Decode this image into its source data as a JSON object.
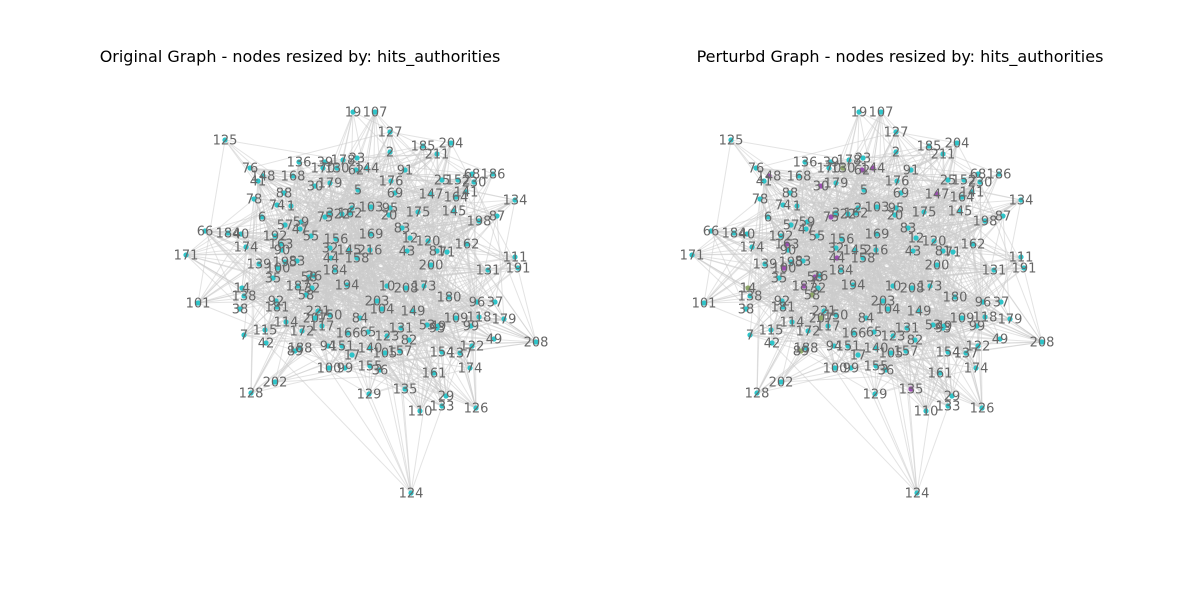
{
  "colors": {
    "edge": "#cccccc",
    "label": "#666666",
    "node_original": "#2ec4c9",
    "node_perturbed_default": "#2ec4c9",
    "node_perturbed_purple": "#9b4fb0",
    "node_perturbed_olive": "#8fa86a"
  },
  "panels": [
    {
      "title": "Original Graph - nodes resized by: hits_authorities",
      "nodes": [
        "19",
        "107",
        "125",
        "127",
        "185",
        "204",
        "2",
        "211",
        "76",
        "148",
        "168",
        "136",
        "39",
        "170",
        "178",
        "23",
        "130",
        "62",
        "144",
        "91",
        "68",
        "186",
        "41",
        "88",
        "30",
        "179",
        "5",
        "176",
        "25",
        "152",
        "230",
        "78",
        "74",
        "1",
        "69",
        "147",
        "164",
        "141",
        "134",
        "3",
        "162",
        "2",
        "103",
        "95",
        "145",
        "87",
        "6",
        "57",
        "59",
        "75",
        "22",
        "20",
        "175",
        "198",
        "66",
        "184",
        "40",
        "192",
        "47",
        "55",
        "156",
        "169",
        "83",
        "12",
        "120",
        "111",
        "171",
        "174",
        "163",
        "90",
        "32",
        "145",
        "216",
        "43",
        "81",
        "71",
        "162",
        "139",
        "195",
        "83",
        "184",
        "44",
        "158",
        "200",
        "131",
        "191",
        "35",
        "26",
        "14",
        "187",
        "194",
        "10",
        "208",
        "173",
        "180",
        "96",
        "37",
        "138",
        "32",
        "58",
        "203",
        "58",
        "101",
        "38",
        "92",
        "181",
        "221",
        "104",
        "149",
        "109",
        "118",
        "179",
        "114",
        "150",
        "84",
        "99",
        "7",
        "115",
        "172",
        "117",
        "207",
        "166",
        "65",
        "131",
        "123",
        "82",
        "93",
        "49",
        "42",
        "89",
        "188",
        "151",
        "140",
        "105",
        "157",
        "154",
        "137",
        "122",
        "208",
        "17",
        "94",
        "49",
        "174",
        "161",
        "202",
        "128",
        "100",
        "99",
        "155",
        "36",
        "129",
        "135",
        "29",
        "133",
        "126",
        "110",
        "124",
        "53",
        "100",
        "50"
      ]
    },
    {
      "title": "Perturbd Graph - nodes resized by: hits_authorities",
      "nodes": [
        "19",
        "107",
        "125",
        "127",
        "185",
        "204",
        "2",
        "211",
        "76",
        "148",
        "168",
        "136",
        "39",
        "170",
        "178",
        "23",
        "130",
        "62",
        "144",
        "91",
        "68",
        "186",
        "41",
        "88",
        "30",
        "179",
        "5",
        "176",
        "25",
        "152",
        "230",
        "78",
        "74",
        "1",
        "69",
        "147",
        "164",
        "141",
        "134",
        "3",
        "162",
        "2",
        "103",
        "95",
        "145",
        "87",
        "6",
        "57",
        "59",
        "75",
        "22",
        "20",
        "175",
        "198",
        "66",
        "184",
        "40",
        "192",
        "47",
        "55",
        "156",
        "169",
        "83",
        "12",
        "120",
        "111",
        "171",
        "174",
        "163",
        "90",
        "32",
        "145",
        "216",
        "43",
        "81",
        "71",
        "162",
        "139",
        "195",
        "83",
        "184",
        "44",
        "158",
        "200",
        "131",
        "191",
        "35",
        "26",
        "14",
        "187",
        "194",
        "10",
        "208",
        "173",
        "180",
        "96",
        "37",
        "138",
        "32",
        "58",
        "203",
        "58",
        "101",
        "38",
        "92",
        "181",
        "221",
        "104",
        "149",
        "109",
        "118",
        "179",
        "114",
        "150",
        "84",
        "99",
        "7",
        "115",
        "172",
        "117",
        "207",
        "166",
        "65",
        "131",
        "123",
        "82",
        "93",
        "49",
        "42",
        "89",
        "188",
        "151",
        "140",
        "105",
        "157",
        "154",
        "137",
        "122",
        "208",
        "17",
        "94",
        "49",
        "174",
        "161",
        "202",
        "128",
        "100",
        "99",
        "155",
        "36",
        "129",
        "135",
        "29",
        "133",
        "126",
        "110",
        "124",
        "53",
        "100",
        "50"
      ]
    }
  ]
}
